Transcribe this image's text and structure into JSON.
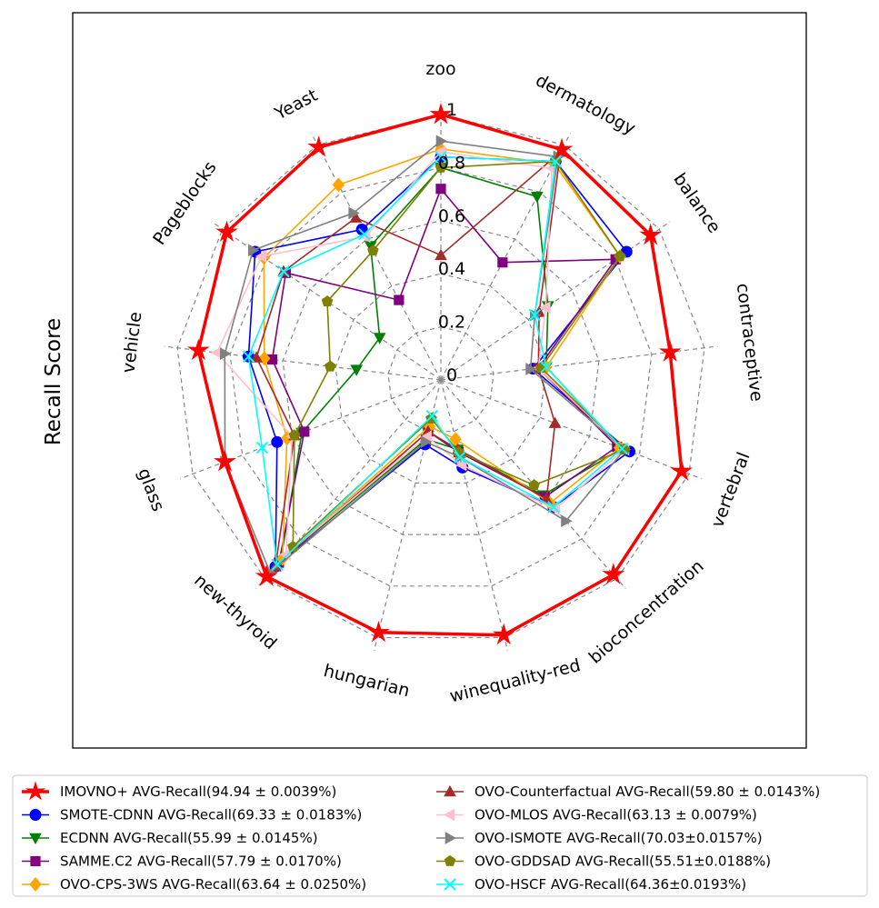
{
  "chart_data": {
    "type": "radar",
    "ylabel": "Recall Score",
    "rlim": [
      0,
      1
    ],
    "r_ticks": [
      "0",
      "0.2",
      "0.4",
      "0.6",
      "0.8",
      "1"
    ],
    "r_tick_values": [
      0,
      0.2,
      0.4,
      0.6,
      0.8,
      1.0
    ],
    "categories": [
      "zoo",
      "dermatology",
      "balance",
      "contraceptive",
      "vertebral",
      "bioconcentration",
      "winequality-red",
      "hungarian",
      "new-thyroid",
      "glass",
      "vehicle",
      "Pageblocks",
      "Yeast"
    ],
    "series": [
      {
        "name": "IMOVNO+ AVG-Recall(94.94 ± 0.0039%)",
        "color": "#ff0000",
        "marker": "star",
        "values": [
          1.0,
          0.98,
          0.96,
          0.87,
          0.97,
          0.98,
          0.99,
          0.98,
          0.99,
          0.87,
          0.92,
          0.98,
          0.99
        ]
      },
      {
        "name": "SMOTE-CDNN AVG-Recall(69.33 ± 0.0183%)",
        "color": "#0000ff",
        "marker": "circle",
        "values": [
          0.84,
          0.93,
          0.85,
          0.35,
          0.76,
          0.64,
          0.34,
          0.25,
          0.94,
          0.66,
          0.73,
          0.85,
          0.64
        ]
      },
      {
        "name": "ECDNN AVG-Recall(55.99 ± 0.0145%)",
        "color": "#008000",
        "marker": "triangle-down",
        "values": [
          0.8,
          0.78,
          0.49,
          0.4,
          0.73,
          0.58,
          0.27,
          0.23,
          0.91,
          0.56,
          0.32,
          0.28,
          0.57
        ]
      },
      {
        "name": "SAMME.C2 AVG-Recall(57.79 ± 0.0170%)",
        "color": "#800080",
        "marker": "square",
        "values": [
          0.72,
          0.5,
          0.8,
          0.37,
          0.71,
          0.59,
          0.28,
          0.2,
          0.92,
          0.55,
          0.64,
          0.71,
          0.34
        ]
      },
      {
        "name": "OVO-CPS-3WS AVG-Recall(63.64 ± 0.0250%)",
        "color": "#ffa500",
        "marker": "diamond",
        "values": [
          0.87,
          0.92,
          0.82,
          0.4,
          0.72,
          0.62,
          0.23,
          0.18,
          0.9,
          0.62,
          0.67,
          0.81,
          0.83
        ]
      },
      {
        "name": "OVO-Counterfactual AVG-Recall(59.80 ± 0.0143%)",
        "color": "#a52a2a",
        "marker": "triangle-up",
        "values": [
          0.47,
          0.97,
          0.45,
          0.37,
          0.46,
          0.6,
          0.27,
          0.2,
          0.94,
          0.59,
          0.7,
          0.72,
          0.69
        ]
      },
      {
        "name": "OVO-MLOS AVG-Recall(63.13 ± 0.0079%)",
        "color": "#ffc0cb",
        "marker": "triangle-left",
        "values": [
          0.86,
          0.9,
          0.48,
          0.37,
          0.74,
          0.65,
          0.33,
          0.22,
          0.88,
          0.6,
          0.85,
          0.82,
          0.61
        ]
      },
      {
        "name": "OVO-ISMOTE AVG-Recall(70.03±0.0157%)",
        "color": "#808080",
        "marker": "triangle-right",
        "values": [
          0.9,
          0.95,
          0.43,
          0.34,
          0.74,
          0.71,
          0.3,
          0.24,
          0.97,
          0.87,
          0.82,
          0.86,
          0.71
        ]
      },
      {
        "name": "OVO-GDDSAD AVG-Recall(55.51±0.0188%)",
        "color": "#808000",
        "marker": "pentagon",
        "values": [
          0.8,
          0.93,
          0.82,
          0.38,
          0.74,
          0.53,
          0.28,
          0.15,
          0.84,
          0.59,
          0.42,
          0.52,
          0.55
        ]
      },
      {
        "name": "OVO-HSCF AVG-Recall(64.36±0.0193%)",
        "color": "#00ffff",
        "marker": "x",
        "values": [
          0.84,
          0.93,
          0.43,
          0.4,
          0.73,
          0.64,
          0.3,
          0.14,
          0.93,
          0.72,
          0.73,
          0.72,
          0.62
        ]
      }
    ]
  }
}
